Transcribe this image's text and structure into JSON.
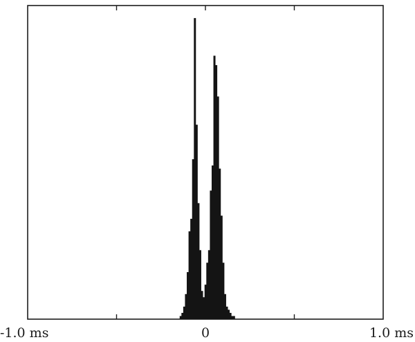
{
  "chart_data": {
    "type": "bar",
    "title": "",
    "xlabel": "",
    "ylabel": "",
    "xlim": [
      -1.0,
      1.0
    ],
    "ylim": [
      0,
      1.0
    ],
    "grid": false,
    "legend": "none",
    "x_tick_labels": [
      "-1.0 ms",
      "0",
      "1.0 ms"
    ],
    "x_tick_values": [
      -1.0,
      0,
      1.0
    ],
    "x_minor_ticks": [
      -0.5,
      0.5
    ],
    "bar_width": 0.01,
    "x": [
      -0.14,
      -0.13,
      -0.12,
      -0.11,
      -0.1,
      -0.09,
      -0.08,
      -0.07,
      -0.06,
      -0.05,
      -0.04,
      -0.03,
      -0.02,
      -0.01,
      0.0,
      0.01,
      0.02,
      0.03,
      0.04,
      0.05,
      0.06,
      0.07,
      0.08,
      0.09,
      0.1,
      0.11,
      0.12,
      0.13,
      0.14,
      0.15,
      0.16
    ],
    "values": [
      0.01,
      0.02,
      0.04,
      0.08,
      0.15,
      0.28,
      0.32,
      0.51,
      0.96,
      0.62,
      0.37,
      0.22,
      0.09,
      0.07,
      0.11,
      0.18,
      0.22,
      0.41,
      0.49,
      0.84,
      0.81,
      0.71,
      0.48,
      0.33,
      0.18,
      0.08,
      0.04,
      0.03,
      0.02,
      0.01,
      0.01
    ],
    "colors": {
      "bars": "#141414",
      "axes": "#1c1c1c",
      "background": "#ffffff"
    }
  }
}
